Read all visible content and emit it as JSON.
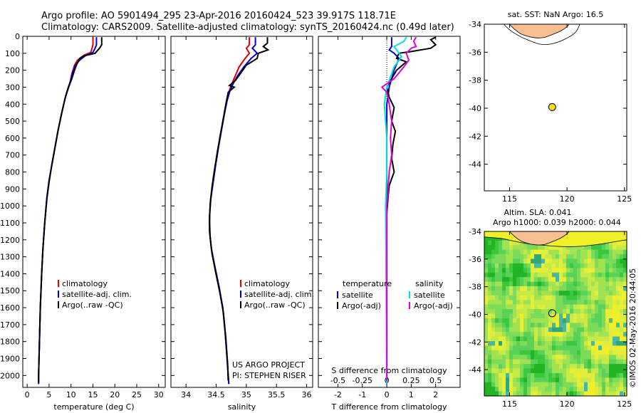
{
  "header": {
    "title_line1": "Argo profile: AO 5901494_295 23-Apr-2016 20160424_523 39.917S 118.71E",
    "title_line2": "Climatology: CARS2009. Satellite-adjusted climatology: synTS_20160424.nc (0.49d later)"
  },
  "colors": {
    "climatology": "#e00000",
    "satellite": "#0000e0",
    "argo": "#000000",
    "sat_cyan": "#00e0e0",
    "argo_magenta": "#e000e0",
    "land": "#f8bf90",
    "sla_green": "#3cc83c",
    "sla_yellow": "#f0f000"
  },
  "chart_data": [
    {
      "id": "temperature",
      "type": "line",
      "xlabel": "temperature (deg C)",
      "xlim": [
        -1,
        31.5
      ],
      "xticks": [
        0,
        5,
        10,
        15,
        20,
        25,
        30
      ],
      "ylim": [
        2070,
        0
      ],
      "yticks": [
        0,
        100,
        200,
        300,
        400,
        500,
        600,
        700,
        800,
        900,
        1000,
        1100,
        1200,
        1300,
        1400,
        1500,
        1600,
        1700,
        1800,
        1900,
        2000
      ],
      "legend": [
        "climatology",
        "satellite-adj. clim.",
        "Argo(..raw -QC)"
      ],
      "series": [
        {
          "name": "climatology",
          "color": "#e00000",
          "points": [
            [
              15.0,
              5
            ],
            [
              15.0,
              50
            ],
            [
              14.8,
              70
            ],
            [
              14.5,
              95
            ],
            [
              13.0,
              110
            ],
            [
              11.5,
              140
            ],
            [
              10.8,
              170
            ],
            [
              10.2,
              220
            ],
            [
              9.8,
              270
            ],
            [
              9.4,
              300
            ],
            [
              8.8,
              350
            ],
            [
              7.9,
              450
            ],
            [
              7.1,
              550
            ],
            [
              6.4,
              650
            ],
            [
              5.7,
              750
            ],
            [
              5.0,
              850
            ],
            [
              4.5,
              950
            ],
            [
              4.0,
              1100
            ],
            [
              3.6,
              1250
            ],
            [
              3.3,
              1400
            ],
            [
              3.0,
              1600
            ],
            [
              2.8,
              1800
            ],
            [
              2.6,
              2000
            ],
            [
              2.6,
              2050
            ]
          ]
        },
        {
          "name": "satellite-adj. clim.",
          "color": "#0000e0",
          "points": [
            [
              15.8,
              5
            ],
            [
              15.8,
              50
            ],
            [
              15.5,
              70
            ],
            [
              15.0,
              95
            ],
            [
              13.5,
              110
            ],
            [
              12.0,
              140
            ],
            [
              11.0,
              170
            ],
            [
              10.3,
              220
            ],
            [
              9.8,
              270
            ],
            [
              9.4,
              300
            ],
            [
              8.8,
              350
            ],
            [
              7.9,
              450
            ],
            [
              7.1,
              550
            ],
            [
              6.4,
              650
            ],
            [
              5.7,
              750
            ],
            [
              5.0,
              850
            ],
            [
              4.5,
              950
            ],
            [
              4.0,
              1100
            ],
            [
              3.6,
              1250
            ],
            [
              3.3,
              1400
            ],
            [
              3.0,
              1600
            ],
            [
              2.8,
              1800
            ],
            [
              2.6,
              2000
            ],
            [
              2.6,
              2050
            ]
          ]
        },
        {
          "name": "Argo(..raw -QC)",
          "color": "#000000",
          "points": [
            [
              17.0,
              5
            ],
            [
              17.0,
              50
            ],
            [
              16.5,
              70
            ],
            [
              15.5,
              100
            ],
            [
              13.0,
              115
            ],
            [
              12.0,
              130
            ],
            [
              11.4,
              160
            ],
            [
              10.8,
              200
            ],
            [
              10.2,
              250
            ],
            [
              9.6,
              290
            ],
            [
              9.2,
              320
            ],
            [
              8.6,
              370
            ],
            [
              7.8,
              460
            ],
            [
              7.0,
              560
            ],
            [
              6.3,
              660
            ],
            [
              5.6,
              760
            ],
            [
              5.0,
              860
            ],
            [
              4.5,
              960
            ],
            [
              4.0,
              1100
            ],
            [
              3.6,
              1250
            ],
            [
              3.3,
              1400
            ],
            [
              3.0,
              1600
            ],
            [
              2.8,
              1800
            ],
            [
              2.6,
              2000
            ],
            [
              2.6,
              2040
            ]
          ]
        }
      ]
    },
    {
      "id": "salinity",
      "type": "line",
      "xlabel": "salinity",
      "xlim": [
        33.75,
        36.1
      ],
      "xticks": [
        34,
        34.5,
        35,
        35.5,
        36
      ],
      "xticklabels": [
        "34",
        "34.5",
        "35",
        "35.5",
        "36"
      ],
      "ylim": [
        2070,
        0
      ],
      "legend": [
        "climatology",
        "satellite-adj. clim.",
        "Argo(..raw -QC)"
      ],
      "annotations": [
        "US ARGO PROJECT",
        "PI: STEPHEN RISER"
      ],
      "series": [
        {
          "name": "climatology",
          "color": "#e00000",
          "points": [
            [
              35.05,
              5
            ],
            [
              35.05,
              50
            ],
            [
              35.0,
              70
            ],
            [
              35.05,
              100
            ],
            [
              34.98,
              130
            ],
            [
              34.88,
              180
            ],
            [
              34.82,
              230
            ],
            [
              34.76,
              280
            ],
            [
              34.72,
              320
            ],
            [
              34.68,
              380
            ],
            [
              34.64,
              450
            ],
            [
              34.59,
              550
            ],
            [
              34.54,
              650
            ],
            [
              34.49,
              760
            ],
            [
              34.45,
              860
            ],
            [
              34.41,
              960
            ],
            [
              34.39,
              1060
            ],
            [
              34.39,
              1150
            ],
            [
              34.42,
              1250
            ],
            [
              34.48,
              1360
            ],
            [
              34.55,
              1480
            ],
            [
              34.61,
              1600
            ],
            [
              34.65,
              1750
            ],
            [
              34.68,
              1900
            ],
            [
              34.71,
              2050
            ]
          ]
        },
        {
          "name": "satellite-adj. clim.",
          "color": "#0000e0",
          "points": [
            [
              35.15,
              5
            ],
            [
              35.15,
              50
            ],
            [
              35.1,
              70
            ],
            [
              35.18,
              100
            ],
            [
              35.08,
              130
            ],
            [
              34.96,
              180
            ],
            [
              34.86,
              230
            ],
            [
              34.78,
              280
            ],
            [
              34.73,
              320
            ],
            [
              34.68,
              380
            ],
            [
              34.64,
              450
            ],
            [
              34.59,
              550
            ],
            [
              34.54,
              650
            ],
            [
              34.49,
              760
            ],
            [
              34.45,
              860
            ],
            [
              34.41,
              960
            ],
            [
              34.39,
              1060
            ],
            [
              34.39,
              1150
            ],
            [
              34.42,
              1250
            ],
            [
              34.48,
              1360
            ],
            [
              34.55,
              1480
            ],
            [
              34.61,
              1600
            ],
            [
              34.65,
              1750
            ],
            [
              34.68,
              1900
            ],
            [
              34.71,
              2050
            ]
          ]
        },
        {
          "name": "Argo(..raw -QC)",
          "color": "#000000",
          "points": [
            [
              35.35,
              5
            ],
            [
              35.35,
              40
            ],
            [
              35.28,
              60
            ],
            [
              35.36,
              80
            ],
            [
              35.2,
              100
            ],
            [
              35.18,
              130
            ],
            [
              35.0,
              170
            ],
            [
              34.9,
              220
            ],
            [
              34.82,
              260
            ],
            [
              34.72,
              290
            ],
            [
              34.8,
              300
            ],
            [
              34.7,
              330
            ],
            [
              34.66,
              400
            ],
            [
              34.62,
              480
            ],
            [
              34.57,
              580
            ],
            [
              34.52,
              680
            ],
            [
              34.47,
              790
            ],
            [
              34.43,
              890
            ],
            [
              34.4,
              990
            ],
            [
              34.39,
              1090
            ],
            [
              34.4,
              1180
            ],
            [
              34.43,
              1280
            ],
            [
              34.49,
              1390
            ],
            [
              34.56,
              1510
            ],
            [
              34.62,
              1630
            ],
            [
              34.66,
              1780
            ],
            [
              34.69,
              1930
            ],
            [
              34.7,
              2030
            ]
          ]
        }
      ]
    },
    {
      "id": "difference",
      "type": "line",
      "xlabel": "T difference from climatology",
      "xlabel_top": "S difference from climatology",
      "xlim": [
        -2.8,
        3.0
      ],
      "xticks": [
        -2,
        -1,
        0,
        1,
        2
      ],
      "xticks_top_values": [
        -0.5,
        -0.25,
        0,
        0.25,
        0.5
      ],
      "xticks_top_labels": [
        "-0.5",
        "-0.25",
        "0",
        "0.25",
        "0.5"
      ],
      "ylim": [
        2070,
        0
      ],
      "legend": {
        "temperature_header": "temperature",
        "salinity_header": "salinity",
        "t_items": [
          "satellite",
          "Argo(-adj)"
        ],
        "s_items": [
          "satellite",
          "Argo(-adj)"
        ]
      },
      "series": [
        {
          "name": "T satellite",
          "color": "#0000e0",
          "points": [
            [
              0.2,
              5
            ],
            [
              0.2,
              60
            ],
            [
              0.1,
              80
            ],
            [
              0.3,
              100
            ],
            [
              0.5,
              130
            ],
            [
              0.3,
              200
            ],
            [
              0.1,
              300
            ],
            [
              0.0,
              400
            ],
            [
              0.0,
              800
            ],
            [
              0.0,
              1200
            ],
            [
              0.0,
              1600
            ],
            [
              0.0,
              2050
            ]
          ]
        },
        {
          "name": "T Argo(-adj)",
          "color": "#000000",
          "points": [
            [
              2.0,
              5
            ],
            [
              1.8,
              20
            ],
            [
              2.0,
              50
            ],
            [
              1.8,
              70
            ],
            [
              1.0,
              90
            ],
            [
              0.5,
              100
            ],
            [
              0.4,
              130
            ],
            [
              0.8,
              150
            ],
            [
              0.4,
              200
            ],
            [
              0.2,
              250
            ],
            [
              0.0,
              300
            ],
            [
              0.1,
              360
            ],
            [
              0.3,
              420
            ],
            [
              0.2,
              500
            ],
            [
              0.35,
              560
            ],
            [
              0.25,
              640
            ],
            [
              0.2,
              720
            ],
            [
              0.3,
              800
            ],
            [
              0.1,
              880
            ],
            [
              0.05,
              950
            ],
            [
              0.0,
              1050
            ],
            [
              0.0,
              1200
            ],
            [
              0.0,
              1400
            ],
            [
              0.0,
              1600
            ],
            [
              0.0,
              2030
            ]
          ]
        },
        {
          "name": "S satellite",
          "color": "#00e0e0",
          "points": [
            [
              0.8,
              5
            ],
            [
              0.7,
              30
            ],
            [
              0.3,
              60
            ],
            [
              0.4,
              80
            ],
            [
              0.6,
              120
            ],
            [
              0.3,
              180
            ],
            [
              0.1,
              260
            ],
            [
              0.0,
              300
            ],
            [
              -0.1,
              400
            ],
            [
              0.0,
              600
            ],
            [
              0.0,
              800
            ],
            [
              -0.05,
              1000
            ],
            [
              0.0,
              2050
            ]
          ]
        },
        {
          "name": "S Argo(-adj)",
          "color": "#e000e0",
          "points": [
            [
              1.2,
              5
            ],
            [
              1.1,
              30
            ],
            [
              1.2,
              60
            ],
            [
              1.0,
              70
            ],
            [
              0.8,
              100
            ],
            [
              0.9,
              140
            ],
            [
              0.7,
              180
            ],
            [
              0.3,
              250
            ],
            [
              -0.2,
              300
            ],
            [
              0.0,
              330
            ],
            [
              0.1,
              400
            ],
            [
              0.2,
              500
            ],
            [
              0.15,
              600
            ],
            [
              0.2,
              700
            ],
            [
              0.1,
              800
            ],
            [
              0.05,
              900
            ],
            [
              0.0,
              1000
            ],
            [
              0.0,
              2030
            ]
          ]
        }
      ]
    },
    {
      "id": "sst_map",
      "type": "scatter",
      "title": "sat. SST: NaN  Argo: 16.5",
      "xlim": [
        112.8,
        125.2
      ],
      "ylim": [
        -45.9,
        -34
      ],
      "xticks": [
        115,
        120,
        125
      ],
      "yticks": [
        -34,
        -36,
        -38,
        -40,
        -42,
        -44
      ],
      "points": [
        {
          "x": 118.71,
          "y": -39.917,
          "color": "#f0e020"
        }
      ]
    },
    {
      "id": "sla_map",
      "type": "heatmap",
      "title_line1": "Altim. SLA: 0.041",
      "title_line2": "Argo h1000: 0.039  h2000: 0.044",
      "xlim": [
        112.8,
        125.2
      ],
      "ylim": [
        -45.9,
        -34
      ],
      "xticks": [
        115,
        120,
        125
      ],
      "yticks": [
        -34,
        -36,
        -38,
        -40,
        -42,
        -44
      ],
      "points": [
        {
          "x": 118.71,
          "y": -39.917
        }
      ]
    }
  ],
  "credit": "©IMOS 02-May-2016 20:44:05"
}
